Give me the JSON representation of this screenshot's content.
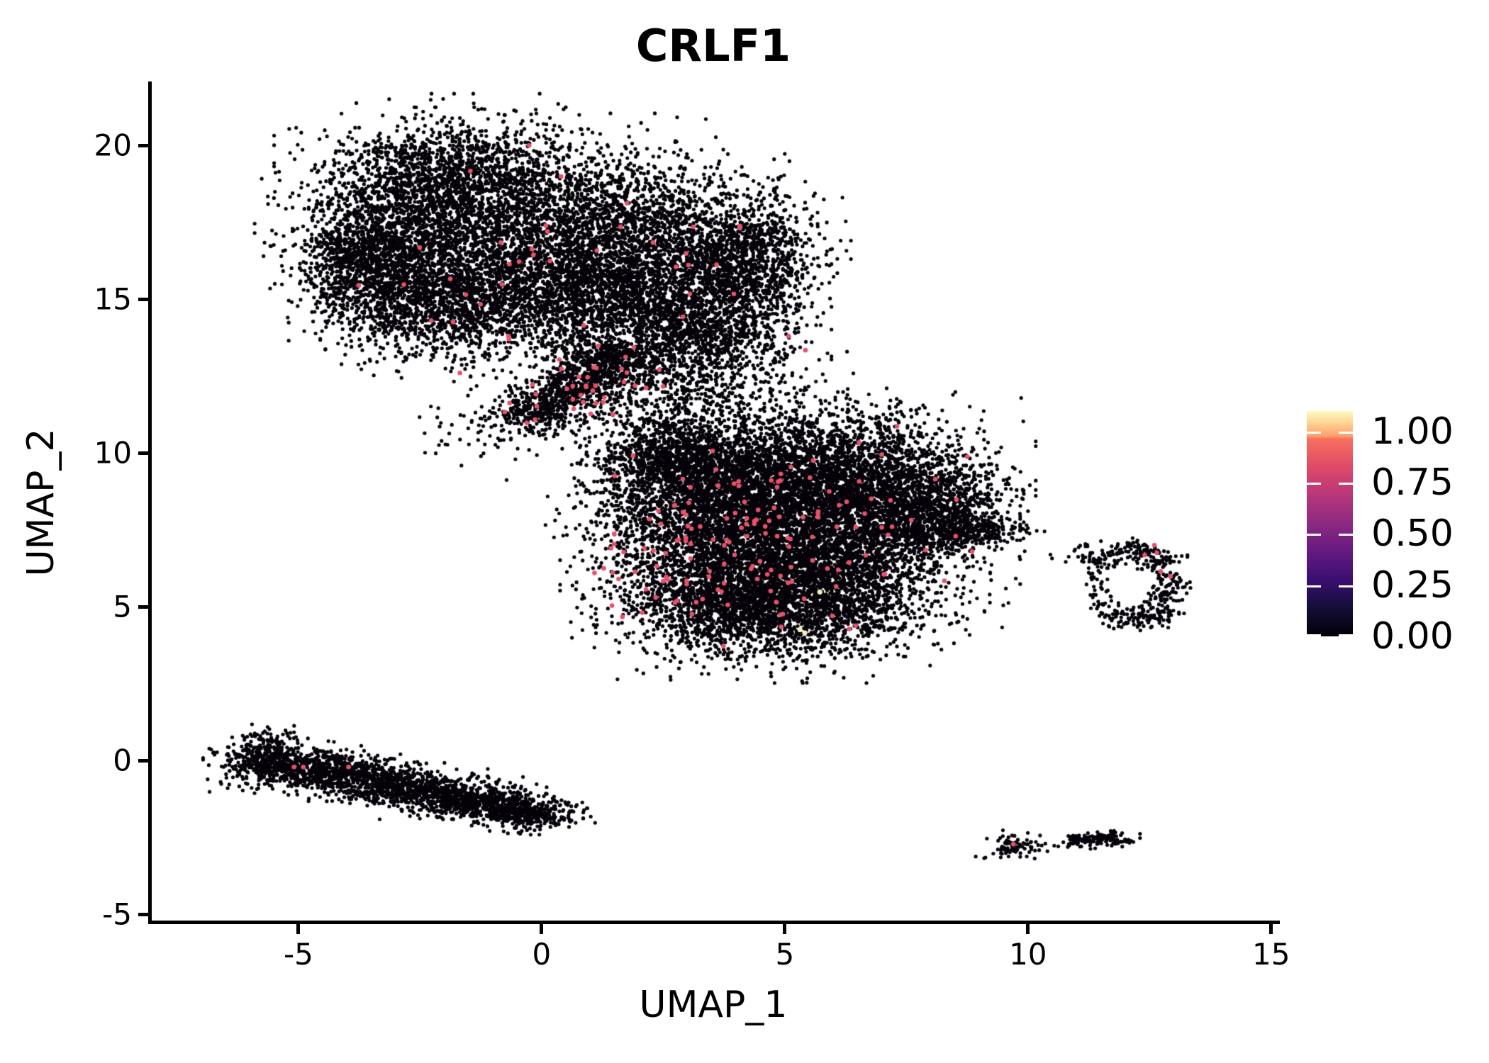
{
  "figure": {
    "background": "#ffffff"
  },
  "chart_data": {
    "type": "scatter",
    "title": "CRLF1",
    "xlabel": "UMAP_1",
    "ylabel": "UMAP_2",
    "x_ticks": [
      -5,
      0,
      5,
      10,
      15
    ],
    "y_ticks": [
      -5,
      0,
      5,
      10,
      15,
      20
    ],
    "xlim": [
      -8.06,
      15.12
    ],
    "ylim": [
      -5.25,
      22.03
    ],
    "grid": false,
    "legend": {
      "position": "right",
      "tick_labels": [
        "1.00",
        "0.75",
        "0.50",
        "0.25",
        "0.00"
      ],
      "tick_values": [
        1.0,
        0.75,
        0.5,
        0.25,
        0.0
      ],
      "value_range": [
        0,
        1.1
      ],
      "colormap": "magma",
      "stops": [
        "#000004",
        "#140e36",
        "#3b0f70",
        "#641a80",
        "#8c2981",
        "#b73779",
        "#de4968",
        "#f7705c",
        "#fe9f6d",
        "#fdcd8e",
        "#fcfdbf"
      ],
      "stop_positions": [
        0,
        0.125,
        0.25,
        0.375,
        0.5,
        0.625,
        0.75,
        0.875,
        0.89,
        0.94,
        1.0
      ],
      "tick_color": "#ffffff"
    },
    "point_colors": {
      "base": "#050309",
      "mid_expression": "#e8516b",
      "high_expression": "#f8f0b0"
    },
    "point_radius": {
      "base": 2.6,
      "mid": 3.3,
      "high": 3.6
    },
    "seed": 42,
    "clusters": [
      {
        "name": "upper-left-lobe",
        "count": 12000,
        "components": [
          [
            -2.0,
            19.3,
            1.25,
            0.85,
            8
          ],
          [
            -3.1,
            17.0,
            1.0,
            1.15,
            10
          ],
          [
            -1.2,
            17.6,
            1.4,
            1.3,
            14
          ],
          [
            1.0,
            17.4,
            1.4,
            1.3,
            13
          ],
          [
            3.0,
            16.6,
            1.2,
            1.2,
            11
          ],
          [
            4.4,
            16.2,
            0.6,
            1.0,
            6
          ],
          [
            -2.4,
            14.9,
            1.0,
            0.85,
            8
          ],
          [
            -0.6,
            15.1,
            1.4,
            0.95,
            11
          ],
          [
            1.6,
            15.0,
            1.2,
            0.9,
            10
          ],
          [
            3.3,
            13.9,
            0.95,
            0.8,
            7
          ],
          [
            -3.8,
            16.2,
            0.55,
            0.8,
            4
          ]
        ],
        "highlight_count": 38,
        "highlight_components": [
          [
            0.5,
            16.8,
            1.8,
            1.5,
            5
          ],
          [
            2.8,
            15.5,
            1.5,
            1.2,
            6
          ],
          [
            -1.5,
            15.4,
            1.5,
            1.0,
            4
          ],
          [
            -2.5,
            17.5,
            1.2,
            1.2,
            2
          ]
        ]
      },
      {
        "name": "bridge-band",
        "count": 820,
        "components": [
          [
            -0.15,
            11.35,
            0.35,
            0.28,
            3
          ],
          [
            0.45,
            11.9,
            0.4,
            0.3,
            3
          ],
          [
            1.05,
            12.5,
            0.4,
            0.3,
            3
          ],
          [
            1.65,
            13.1,
            0.4,
            0.3,
            3
          ]
        ],
        "highlight_count": 28
      },
      {
        "name": "neck-scatter",
        "count": 1000,
        "components": [
          [
            2.3,
            11.6,
            1.5,
            0.9,
            5
          ],
          [
            1.2,
            12.8,
            0.9,
            0.7,
            3
          ],
          [
            3.2,
            12.4,
            1.1,
            0.8,
            3
          ],
          [
            -1.0,
            10.8,
            0.7,
            0.6,
            1
          ]
        ],
        "highlight_count": 12
      },
      {
        "name": "central-lobe",
        "count": 13000,
        "components": [
          [
            3.3,
            8.6,
            1.15,
            1.15,
            10
          ],
          [
            5.0,
            9.4,
            1.5,
            1.05,
            13
          ],
          [
            6.8,
            8.9,
            1.2,
            1.1,
            10
          ],
          [
            4.3,
            7.0,
            1.4,
            1.25,
            13
          ],
          [
            6.2,
            6.6,
            1.3,
            1.15,
            11
          ],
          [
            3.6,
            5.3,
            1.1,
            0.95,
            8
          ],
          [
            5.3,
            4.9,
            1.25,
            0.85,
            8
          ],
          [
            7.9,
            8.25,
            0.75,
            0.6,
            4
          ],
          [
            8.8,
            7.5,
            0.55,
            0.28,
            2
          ],
          [
            2.6,
            9.9,
            0.6,
            0.55,
            3
          ]
        ],
        "highlight_count": 150,
        "highlight_components": [
          [
            3.3,
            7.8,
            1.3,
            1.4,
            8
          ],
          [
            4.8,
            6.0,
            1.4,
            1.2,
            7
          ],
          [
            5.6,
            8.8,
            1.3,
            1.0,
            4
          ],
          [
            6.8,
            7.0,
            1.0,
            1.0,
            2
          ],
          [
            2.9,
            5.6,
            0.8,
            0.8,
            3
          ]
        ],
        "highlight_points": [
          [
            8.85,
            6.8
          ]
        ],
        "high_points": [
          [
            5.31,
            4.26
          ],
          [
            5.41,
            4.15
          ],
          [
            5.72,
            5.48
          ]
        ]
      },
      {
        "name": "right-ring",
        "count": 430,
        "components": [
          [
            12.15,
            6.8,
            0.22,
            0.2,
            3
          ],
          [
            12.68,
            6.48,
            0.22,
            0.2,
            3
          ],
          [
            12.9,
            5.7,
            0.2,
            0.3,
            4
          ],
          [
            12.68,
            4.92,
            0.22,
            0.2,
            3
          ],
          [
            12.15,
            4.6,
            0.3,
            0.18,
            3
          ],
          [
            11.62,
            4.92,
            0.22,
            0.18,
            2
          ],
          [
            11.4,
            5.7,
            0.16,
            0.25,
            1.5
          ],
          [
            11.62,
            6.48,
            0.22,
            0.18,
            2
          ],
          [
            10.95,
            6.6,
            0.28,
            0.16,
            1.2
          ],
          [
            11.35,
            6.9,
            0.2,
            0.14,
            0.8
          ]
        ],
        "highlight_points": [
          [
            12.6,
            7.0
          ],
          [
            12.65,
            6.75
          ],
          [
            12.4,
            6.68
          ],
          [
            12.73,
            6.15
          ],
          [
            12.93,
            5.98
          ]
        ]
      },
      {
        "name": "lower-left-band",
        "count": 2800,
        "components": [
          [
            -5.7,
            0.0,
            0.45,
            0.42,
            5
          ],
          [
            -4.6,
            -0.3,
            0.55,
            0.35,
            5
          ],
          [
            -3.5,
            -0.65,
            0.55,
            0.33,
            5
          ],
          [
            -2.4,
            -1.0,
            0.55,
            0.33,
            5
          ],
          [
            -1.3,
            -1.35,
            0.55,
            0.3,
            5
          ],
          [
            -0.3,
            -1.7,
            0.5,
            0.26,
            4
          ]
        ],
        "highlight_points": [
          [
            -5.09,
            -0.21
          ],
          [
            -4.9,
            -0.21
          ],
          [
            -3.97,
            -0.21
          ]
        ]
      },
      {
        "name": "bottom-islands",
        "count": 240,
        "components": [
          [
            9.75,
            -2.8,
            0.3,
            0.2,
            3
          ],
          [
            11.05,
            -2.62,
            0.18,
            0.12,
            1.5
          ],
          [
            11.45,
            -2.58,
            0.22,
            0.1,
            1.5
          ],
          [
            11.8,
            -2.52,
            0.18,
            0.1,
            1.5
          ]
        ],
        "highlight_points": [
          [
            9.7,
            -2.72
          ]
        ],
        "black_points": [
          [
            10.54,
            -2.77
          ],
          [
            6.58,
            3.62
          ]
        ]
      }
    ]
  }
}
